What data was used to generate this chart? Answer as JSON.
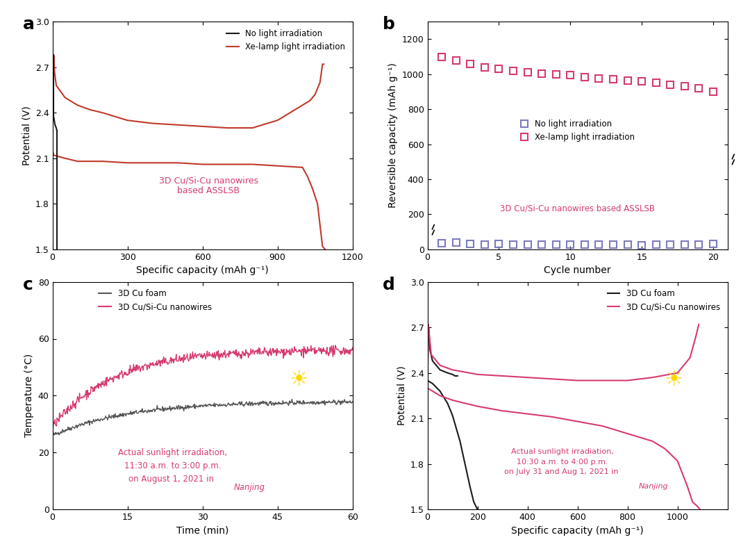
{
  "fig_bg": "#ffffff",
  "color_black": "#1a1a1a",
  "color_red_xe": "#c0392b",
  "color_pink_xe": "#d63a6e",
  "color_purple_no": "#7b7bbf",
  "color_gray": "#555555",
  "panel_a": {
    "xlabel": "Specific capacity (mAh g⁻¹)",
    "ylabel": "Potential (V)",
    "xlim": [
      0,
      1200
    ],
    "ylim": [
      1.5,
      3.0
    ],
    "xticks": [
      0,
      300,
      600,
      900,
      1200
    ],
    "yticks": [
      1.5,
      1.8,
      2.1,
      2.4,
      2.7,
      3.0
    ],
    "annotation": "3D Cu/Si-Cu nanowires\nbased ASSLSB",
    "legend_labels": [
      "No light irradiation",
      "Xe-lamp light irradiation"
    ]
  },
  "panel_b": {
    "xlabel": "Cycle number",
    "ylabel": "Reversible capacity (mAh g⁻¹)",
    "xlim": [
      0,
      21
    ],
    "ylim": [
      0,
      1300
    ],
    "xticks": [
      0,
      5,
      10,
      15,
      20
    ],
    "yticks": [
      0,
      200,
      400,
      600,
      800,
      1000,
      1200
    ],
    "annotation": "3D Cu/Si-Cu nanowires based ASSLSB",
    "legend_labels": [
      "No light irradiation",
      "Xe-lamp light irradiation"
    ],
    "no_light_data_x": [
      1,
      2,
      3,
      4,
      5,
      6,
      7,
      8,
      9,
      10,
      11,
      12,
      13,
      14,
      15,
      16,
      17,
      18,
      19,
      20
    ],
    "no_light_data_y": [
      35,
      38,
      30,
      28,
      30,
      25,
      28,
      25,
      28,
      25,
      25,
      25,
      25,
      25,
      22,
      25,
      25,
      25,
      28,
      30
    ],
    "xe_data_x": [
      1,
      2,
      3,
      4,
      5,
      6,
      7,
      8,
      9,
      10,
      11,
      12,
      13,
      14,
      15,
      16,
      17,
      18,
      19,
      20
    ],
    "xe_data_y": [
      1100,
      1080,
      1060,
      1040,
      1030,
      1020,
      1010,
      1005,
      1000,
      995,
      985,
      975,
      970,
      965,
      960,
      950,
      940,
      930,
      920,
      900
    ]
  },
  "panel_c": {
    "xlabel": "Time (min)",
    "ylabel": "Temperature (°C)",
    "xlim": [
      0,
      60
    ],
    "ylim": [
      0,
      80
    ],
    "xticks": [
      0,
      15,
      30,
      45,
      60
    ],
    "yticks": [
      0,
      20,
      40,
      60,
      80
    ],
    "ann1": "Actual sunlight irradiation,",
    "ann2": "11:30 a.m. to 3:00 p.m.",
    "ann3": "on August 1, 2021 in ",
    "ann3_italic": "Nanjing",
    "legend_labels": [
      "3D Cu foam",
      "3D Cu/Si-Cu nanowires"
    ]
  },
  "panel_d": {
    "xlabel": "Specific capacity (mAh g⁻¹)",
    "ylabel": "Potential (V)",
    "xlim": [
      0,
      1200
    ],
    "ylim": [
      1.5,
      3.0
    ],
    "xticks": [
      0,
      200,
      400,
      600,
      800,
      1000
    ],
    "yticks": [
      1.5,
      1.8,
      2.1,
      2.4,
      2.7,
      3.0
    ],
    "ann1": "Actual sunlight irradiation,",
    "ann2": "10:30 a.m. to 4:00 p.m.",
    "ann3": "on July 31 and Aug 1, 2021 in ",
    "ann3_italic": "Nanjing",
    "legend_labels": [
      "3D Cu foam",
      "3D Cu/Si-Cu nanowires"
    ]
  }
}
